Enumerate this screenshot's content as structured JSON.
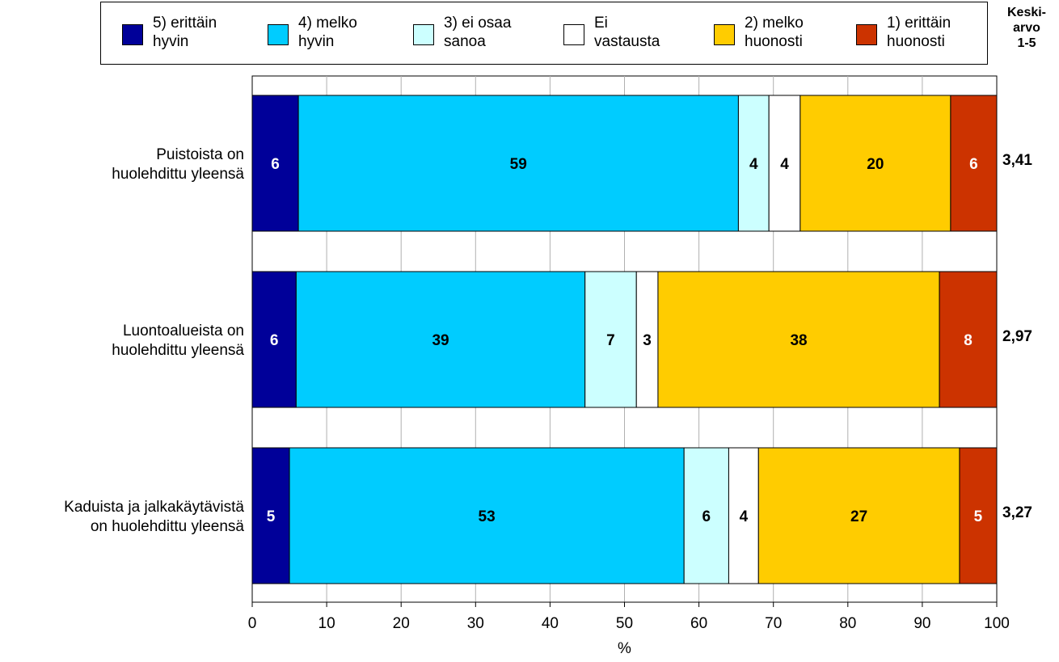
{
  "chart_data": {
    "type": "bar",
    "orientation": "horizontal",
    "stacked": true,
    "xlabel": "%",
    "xlim": [
      0,
      100
    ],
    "xticks": [
      0,
      10,
      20,
      30,
      40,
      50,
      60,
      70,
      80,
      90,
      100
    ],
    "grid": "vertical",
    "legend_position": "top",
    "categories": [
      "Puistoista on\nhuolehdittu yleensä",
      "Luontoalueista on\nhuolehdittu yleensä",
      "Kaduista ja jalkakäytävistä\non huolehdittu yleensä"
    ],
    "series": [
      {
        "name": "5) erittäin\nhyvin",
        "color": "#000099",
        "label_color": "#ffffff",
        "values": [
          6,
          6,
          5
        ],
        "bar_widths": [
          6.2,
          5.9,
          5.0
        ]
      },
      {
        "name": "4) melko\nhyvin",
        "color": "#00ccff",
        "label_color": "#000000",
        "values": [
          59,
          39,
          53
        ],
        "bar_widths": [
          59.1,
          38.8,
          53.0
        ]
      },
      {
        "name": "3) ei osaa\nsanoa",
        "color": "#ccffff",
        "label_color": "#000000",
        "values": [
          4,
          7,
          6
        ],
        "bar_widths": [
          4.1,
          6.9,
          6.0
        ]
      },
      {
        "name": "Ei\nvastausta",
        "color": "#ffffff",
        "label_color": "#000000",
        "values": [
          4,
          3,
          4
        ],
        "bar_widths": [
          4.2,
          2.9,
          4.0
        ]
      },
      {
        "name": "2) melko\nhuonosti",
        "color": "#ffcc00",
        "label_color": "#000000",
        "values": [
          20,
          38,
          27
        ],
        "bar_widths": [
          20.2,
          37.8,
          27.0
        ]
      },
      {
        "name": "1) erittäin\nhuonosti",
        "color": "#cc3300",
        "label_color": "#ffffff",
        "values": [
          6,
          8,
          5
        ],
        "bar_widths": [
          6.2,
          7.7,
          5.0
        ]
      }
    ],
    "averages_header": "Keski-\narvo\n1-5",
    "averages": [
      "3,41",
      "2,97",
      "3,27"
    ]
  }
}
